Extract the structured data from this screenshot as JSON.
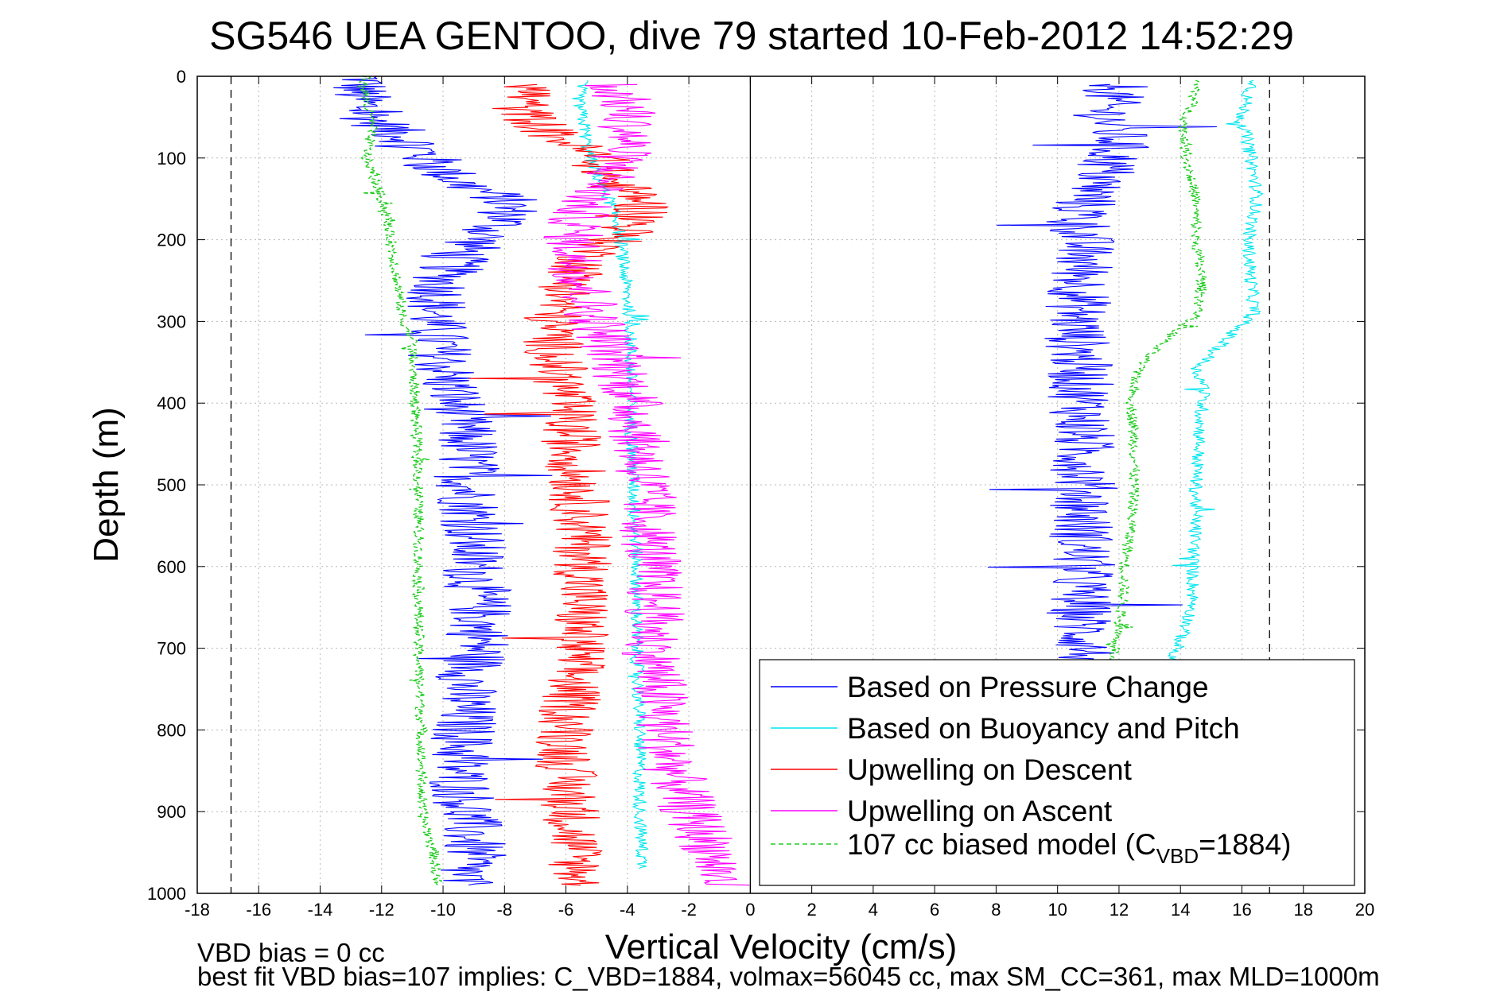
{
  "title": "SG546 UEA GENTOO, dive 79 started 10-Feb-2012 14:52:29",
  "footnotes": {
    "line1": "VBD bias = 0 cc",
    "line2": "best fit VBD bias=107 implies: C_VBD=1884, volmax=56045 cc, max SM_CC=361, max MLD=1000m"
  },
  "chart_data": {
    "type": "line",
    "title": "SG546 UEA GENTOO, dive 79 started 10-Feb-2012 14:52:29",
    "xlabel": "Vertical Velocity (cm/s)",
    "ylabel": "Depth (m)",
    "xlim": [
      -18,
      20
    ],
    "ylim": [
      0,
      1000
    ],
    "y_reversed": true,
    "grid": true,
    "legend_position": "bottom-right",
    "x_ticks": [
      "-18",
      "-16",
      "-14",
      "-12",
      "-10",
      "-8",
      "-6",
      "-4",
      "-2",
      "0",
      "2",
      "4",
      "6",
      "8",
      "10",
      "12",
      "14",
      "16",
      "18",
      "20"
    ],
    "y_ticks": [
      "0",
      "100",
      "200",
      "300",
      "400",
      "500",
      "600",
      "700",
      "800",
      "900",
      "1000"
    ],
    "reference_lines": [
      {
        "kind": "vertical",
        "style": "dashed",
        "x": -16.9
      },
      {
        "kind": "vertical",
        "style": "dashed",
        "x": 16.9
      },
      {
        "kind": "vertical",
        "style": "solid",
        "x": 0
      }
    ],
    "series": [
      {
        "name": "Based on Pressure Change",
        "color": "#0000ff",
        "segments": [
          {
            "depth": [
              0,
              20,
              50,
              80,
              100,
              130,
              150,
              170,
              190,
              220,
              250,
              300,
              350,
              400,
              450,
              500,
              550,
              600,
              650,
              700,
              750,
              800,
              850,
              900,
              950,
              990
            ],
            "velocity": [
              -12.5,
              -12.8,
              -12.4,
              -11.0,
              -10.5,
              -9.5,
              -8.0,
              -7.8,
              -8.5,
              -9.5,
              -10.0,
              -10.3,
              -10.0,
              -9.6,
              -9.2,
              -9.2,
              -9.0,
              -9.0,
              -8.8,
              -8.8,
              -9.3,
              -9.3,
              -9.5,
              -9.2,
              -9.0,
              -9.5
            ]
          },
          {
            "depth": [
              10,
              40,
              80,
              120,
              160,
              200,
              250,
              300,
              350,
              400,
              450,
              500,
              550,
              600,
              650,
              700,
              715
            ],
            "velocity": [
              12.0,
              11.5,
              12.0,
              11.5,
              10.8,
              10.8,
              10.8,
              10.6,
              10.7,
              10.8,
              10.8,
              10.9,
              10.8,
              10.8,
              10.7,
              10.9,
              11.0
            ]
          }
        ]
      },
      {
        "name": "Based on Buoyancy and Pitch",
        "color": "#00e5ee",
        "segments": [
          {
            "depth": [
              5,
              30,
              60,
              90,
              120,
              150,
              180,
              210,
              240,
              270,
              300,
              400,
              500,
              600,
              700,
              800,
              900,
              970
            ],
            "velocity": [
              -5.5,
              -5.6,
              -5.4,
              -5.3,
              -5.0,
              -4.6,
              -4.3,
              -4.2,
              -4.1,
              -4.0,
              -3.9,
              -3.9,
              -3.8,
              -3.7,
              -3.7,
              -3.6,
              -3.6,
              -3.5
            ]
          },
          {
            "depth": [
              5,
              20,
              50,
              100,
              150,
              200,
              250,
              290,
              310,
              340,
              360,
              380,
              400,
              450,
              500,
              550,
              600,
              650,
              700,
              715
            ],
            "velocity": [
              16.5,
              16.2,
              16.0,
              16.3,
              16.5,
              16.2,
              16.3,
              16.4,
              15.8,
              15.0,
              14.5,
              14.8,
              14.7,
              14.6,
              14.5,
              14.5,
              14.4,
              14.4,
              13.9,
              13.6
            ]
          }
        ]
      },
      {
        "name": "Upwelling on Descent",
        "color": "#ff0000",
        "segments": [
          {
            "depth": [
              10,
              40,
              70,
              100,
              130,
              150,
              170,
              190,
              220,
              250,
              300,
              350,
              400,
              450,
              500,
              550,
              600,
              650,
              700,
              750,
              800,
              850,
              900,
              950,
              990
            ],
            "velocity": [
              -7.0,
              -7.5,
              -6.5,
              -5.0,
              -4.5,
              -3.5,
              -3.5,
              -4.0,
              -5.3,
              -5.8,
              -6.5,
              -6.3,
              -6.0,
              -5.8,
              -5.6,
              -5.5,
              -5.4,
              -5.5,
              -5.6,
              -5.8,
              -6.0,
              -6.0,
              -5.8,
              -5.7,
              -5.5
            ]
          }
        ]
      },
      {
        "name": "Upwelling on Ascent",
        "color": "#ff00ff",
        "segments": [
          {
            "depth": [
              10,
              40,
              80,
              120,
              160,
              200,
              250,
              300,
              350,
              400,
              450,
              500,
              550,
              600,
              650,
              700,
              750,
              800,
              850,
              900,
              950,
              990
            ],
            "velocity": [
              -4.5,
              -4.0,
              -4.0,
              -4.5,
              -5.5,
              -5.8,
              -5.5,
              -5.0,
              -4.3,
              -3.8,
              -3.6,
              -3.4,
              -3.3,
              -3.2,
              -3.1,
              -3.2,
              -3.0,
              -2.8,
              -2.5,
              -2.0,
              -1.2,
              -1.0
            ]
          }
        ]
      },
      {
        "name": "107 cc biased model (C_VBD=1884)",
        "color": "#22cc22",
        "style": "dashed",
        "segments": [
          {
            "depth": [
              0,
              10,
              30,
              60,
              100,
              130,
              160,
              200,
              250,
              300,
              320,
              350,
              400,
              500,
              600,
              700,
              800,
              900,
              950,
              990
            ],
            "velocity": [
              -12.5,
              -12.6,
              -12.5,
              -12.3,
              -12.5,
              -12.2,
              -11.9,
              -11.7,
              -11.5,
              -11.3,
              -11.0,
              -11.0,
              -10.9,
              -10.8,
              -10.8,
              -10.8,
              -10.7,
              -10.7,
              -10.3,
              -10.2
            ]
          },
          {
            "depth": [
              5,
              20,
              60,
              100,
              150,
              200,
              250,
              290,
              310,
              340,
              360,
              380,
              400,
              450,
              500,
              550,
              600,
              650,
              700,
              715
            ],
            "velocity": [
              14.5,
              14.5,
              14.1,
              14.2,
              14.5,
              14.5,
              14.7,
              14.6,
              13.9,
              13.0,
              12.6,
              12.5,
              12.4,
              12.5,
              12.5,
              12.4,
              12.2,
              12.1,
              11.9,
              11.7
            ]
          }
        ]
      }
    ],
    "legend": [
      {
        "label": "Based on Pressure Change",
        "color": "#0000ff",
        "style": "solid"
      },
      {
        "label": "Based on Buoyancy and Pitch",
        "color": "#00e5ee",
        "style": "solid"
      },
      {
        "label": "Upwelling on Descent",
        "color": "#ff0000",
        "style": "solid"
      },
      {
        "label": "Upwelling on Ascent",
        "color": "#ff00ff",
        "style": "solid"
      },
      {
        "label": "107 cc biased model (C",
        "sub": "VBD",
        "tail": "=1884)",
        "color": "#22cc22",
        "style": "dashed"
      }
    ]
  }
}
